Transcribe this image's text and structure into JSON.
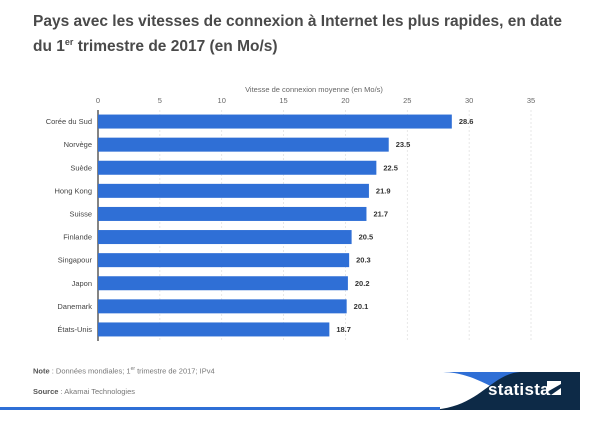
{
  "title_main": "Pays avec les vitesses de connexion à Internet les plus rapides, en date du 1",
  "title_sup": "er",
  "title_end": " trimestre de 2017 (en Mo/s)",
  "chart_data": {
    "type": "bar",
    "orientation": "horizontal",
    "xlabel": "Vitesse de connexion moyenne (en Mo/s)",
    "xlim": [
      0,
      35
    ],
    "ticks": [
      0,
      5,
      10,
      15,
      20,
      25,
      30,
      35
    ],
    "grid": true,
    "categories": [
      "Corée du Sud",
      "Norvège",
      "Suède",
      "Hong Kong",
      "Suisse",
      "Finlande",
      "Singapour",
      "Japon",
      "Danemark",
      "États-Unis"
    ],
    "values": [
      28.6,
      23.5,
      22.5,
      21.9,
      21.7,
      20.5,
      20.3,
      20.2,
      20.1,
      18.7
    ],
    "labels": [
      "28.6",
      "23.5",
      "22.5",
      "21.9",
      "21.7",
      "20.5",
      "20.3",
      "20.2",
      "20.1",
      "18.7"
    ],
    "bar_color": "#2f6fd6"
  },
  "footer": {
    "note_label": "Note",
    "note_text": " : Données mondiales; 1",
    "note_sup": "er",
    "note_end": " trimestre de 2017; IPv4",
    "source_label": "Source",
    "source_text": " : Akamai Technologies"
  },
  "brand": "statista",
  "colors": {
    "navy": "#0d2a47",
    "blue": "#2f6fd6"
  }
}
